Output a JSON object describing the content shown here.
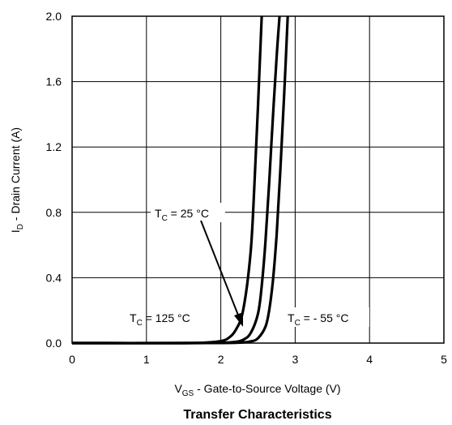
{
  "chart_data": {
    "type": "line",
    "title": "Transfer Characteristics",
    "xlabel": {
      "main": "V",
      "sub": "GS",
      "rest": " - Gate-to-Source Voltage (V)"
    },
    "ylabel": {
      "main": "I",
      "sub": "D",
      "rest": " - Drain Current (A)"
    },
    "xlim": [
      0,
      5
    ],
    "ylim": [
      0,
      2.0
    ],
    "xticks": [
      "0",
      "1",
      "2",
      "3",
      "4",
      "5"
    ],
    "yticks": [
      "0.0",
      "0.4",
      "0.8",
      "1.2",
      "1.6",
      "2.0"
    ],
    "grid": true,
    "legend": "none",
    "series": [
      {
        "name": "T_C = 125 °C",
        "color": "#000000",
        "x": [
          0.0,
          1.0,
          1.5,
          1.8,
          2.0,
          2.1,
          2.2,
          2.3,
          2.4,
          2.45,
          2.5,
          2.55
        ],
        "y": [
          0.0,
          0.0,
          0.0,
          0.003,
          0.012,
          0.03,
          0.08,
          0.2,
          0.55,
          0.95,
          1.45,
          2.0
        ]
      },
      {
        "name": "T_C = 25 °C",
        "color": "#000000",
        "x": [
          0.0,
          1.5,
          2.0,
          2.2,
          2.3,
          2.4,
          2.5,
          2.55,
          2.6,
          2.65,
          2.7,
          2.75,
          2.79
        ],
        "y": [
          0.0,
          0.0,
          0.002,
          0.008,
          0.02,
          0.06,
          0.18,
          0.35,
          0.62,
          0.98,
          1.38,
          1.75,
          2.0
        ]
      },
      {
        "name": "T_C = - 55 °C",
        "color": "#000000",
        "x": [
          0.0,
          1.5,
          2.2,
          2.4,
          2.5,
          2.6,
          2.65,
          2.7,
          2.75,
          2.8,
          2.85,
          2.9
        ],
        "y": [
          0.0,
          0.0,
          0.002,
          0.01,
          0.03,
          0.1,
          0.2,
          0.38,
          0.66,
          1.05,
          1.5,
          2.0
        ]
      }
    ],
    "annotations": [
      {
        "main": "T",
        "sub": "C",
        "rest": " = 25 °C",
        "arrow": true
      },
      {
        "main": "T",
        "sub": "C",
        "rest": " = 125 °C",
        "arrow": false
      },
      {
        "main": "T",
        "sub": "C",
        "rest": " = - 55 °C",
        "arrow": false
      }
    ]
  }
}
